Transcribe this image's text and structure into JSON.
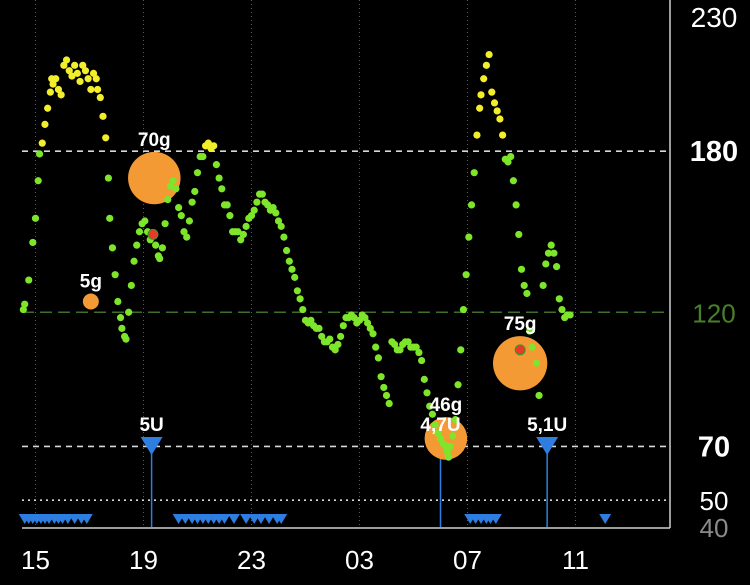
{
  "chart_data": {
    "type": "scatter",
    "title": "",
    "xlabel": "",
    "ylabel": "",
    "ylim": [
      40,
      230
    ],
    "x_range_hours": [
      14.5,
      14.1
    ],
    "target_line": 120,
    "y_ticks": [
      {
        "value": 230,
        "label": "230",
        "color": "#ffffff"
      },
      {
        "value": 180,
        "label": "180",
        "color": "#ffffff"
      },
      {
        "value": 120,
        "label": "120",
        "color": "#4a7f2a"
      },
      {
        "value": 70,
        "label": "70",
        "color": "#ffffff"
      },
      {
        "value": 50,
        "label": "50",
        "color": "#ffffff"
      },
      {
        "value": 40,
        "label": "40",
        "color": "#8a8a8a"
      }
    ],
    "x_ticks": [
      {
        "hour": 15,
        "label": "15"
      },
      {
        "hour": 19,
        "label": "19"
      },
      {
        "hour": 23,
        "label": "23"
      },
      {
        "hour": 3,
        "label": "03"
      },
      {
        "hour": 7,
        "label": "07"
      },
      {
        "hour": 11,
        "label": "11"
      }
    ],
    "colors": {
      "in_range": "#7ee62a",
      "high": "#f2ee2a",
      "low_marker": "#e83a2a",
      "carbs": "#f39a35",
      "insulin": "#2d7ee0",
      "grid": "#ffffff",
      "target_line": "#3f6e28"
    },
    "glucose": [
      [
        14.55,
        121
      ],
      [
        14.6,
        123
      ],
      [
        14.75,
        132
      ],
      [
        14.9,
        146
      ],
      [
        15.0,
        155
      ],
      [
        15.1,
        169
      ],
      [
        15.15,
        179
      ],
      [
        15.25,
        183
      ],
      [
        15.35,
        190
      ],
      [
        15.45,
        196
      ],
      [
        15.55,
        202
      ],
      [
        15.6,
        207
      ],
      [
        15.65,
        205
      ],
      [
        15.75,
        207
      ],
      [
        15.85,
        203
      ],
      [
        15.95,
        201
      ],
      [
        16.05,
        212
      ],
      [
        16.15,
        214
      ],
      [
        16.25,
        210
      ],
      [
        16.35,
        208
      ],
      [
        16.45,
        212
      ],
      [
        16.55,
        209
      ],
      [
        16.65,
        206
      ],
      [
        16.75,
        212
      ],
      [
        16.85,
        210
      ],
      [
        16.95,
        207
      ],
      [
        17.05,
        203
      ],
      [
        17.15,
        209
      ],
      [
        17.25,
        207
      ],
      [
        17.3,
        203
      ],
      [
        17.4,
        200
      ],
      [
        17.5,
        193
      ],
      [
        17.6,
        185
      ],
      [
        17.7,
        170
      ],
      [
        17.75,
        155
      ],
      [
        17.85,
        144
      ],
      [
        17.95,
        134
      ],
      [
        18.05,
        124
      ],
      [
        18.15,
        118
      ],
      [
        18.2,
        114
      ],
      [
        18.3,
        111
      ],
      [
        18.35,
        110
      ],
      [
        18.45,
        120
      ],
      [
        18.55,
        130
      ],
      [
        18.65,
        139
      ],
      [
        18.75,
        145
      ],
      [
        18.85,
        150
      ],
      [
        18.95,
        153
      ],
      [
        19.05,
        154
      ],
      [
        19.15,
        150
      ],
      [
        19.25,
        147
      ],
      [
        19.35,
        149
      ],
      [
        19.45,
        145
      ],
      [
        19.55,
        141
      ],
      [
        19.6,
        140
      ],
      [
        19.7,
        144
      ],
      [
        19.8,
        153
      ],
      [
        19.9,
        162
      ],
      [
        20.0,
        167
      ],
      [
        20.1,
        169
      ],
      [
        20.2,
        166
      ],
      [
        20.3,
        159
      ],
      [
        20.4,
        156
      ],
      [
        20.5,
        150
      ],
      [
        20.6,
        148
      ],
      [
        20.7,
        154
      ],
      [
        20.8,
        161
      ],
      [
        20.9,
        165
      ],
      [
        21.0,
        172
      ],
      [
        21.1,
        178
      ],
      [
        21.2,
        178
      ],
      [
        21.3,
        182
      ],
      [
        21.4,
        183
      ],
      [
        21.5,
        181
      ],
      [
        21.6,
        182
      ],
      [
        21.7,
        175
      ],
      [
        21.8,
        170
      ],
      [
        21.9,
        166
      ],
      [
        22.0,
        160
      ],
      [
        22.1,
        160
      ],
      [
        22.2,
        156
      ],
      [
        22.3,
        150
      ],
      [
        22.4,
        150
      ],
      [
        22.5,
        150
      ],
      [
        22.6,
        147
      ],
      [
        22.7,
        149
      ],
      [
        22.8,
        152
      ],
      [
        22.9,
        155
      ],
      [
        23.0,
        156
      ],
      [
        23.1,
        158
      ],
      [
        23.2,
        161
      ],
      [
        23.3,
        164
      ],
      [
        23.4,
        164
      ],
      [
        23.5,
        161
      ],
      [
        23.6,
        160
      ],
      [
        23.7,
        158
      ],
      [
        23.8,
        159
      ],
      [
        23.9,
        157
      ],
      [
        24.0,
        154
      ],
      [
        24.1,
        152
      ],
      [
        24.2,
        148
      ],
      [
        24.3,
        143
      ],
      [
        24.4,
        139
      ],
      [
        24.5,
        136
      ],
      [
        24.6,
        133
      ],
      [
        24.7,
        128
      ],
      [
        24.8,
        125
      ],
      [
        24.9,
        121
      ],
      [
        25.0,
        117
      ],
      [
        25.1,
        116
      ],
      [
        25.2,
        117
      ],
      [
        25.3,
        115
      ],
      [
        25.4,
        114
      ],
      [
        25.5,
        114
      ],
      [
        25.6,
        111
      ],
      [
        25.7,
        109
      ],
      [
        25.8,
        109
      ],
      [
        25.9,
        110
      ],
      [
        26.0,
        107
      ],
      [
        26.1,
        106
      ],
      [
        26.2,
        108
      ],
      [
        26.3,
        111
      ],
      [
        26.4,
        115
      ],
      [
        26.5,
        118
      ],
      [
        26.6,
        118
      ],
      [
        26.7,
        119
      ],
      [
        26.8,
        118
      ],
      [
        26.9,
        116
      ],
      [
        27.0,
        117
      ],
      [
        27.1,
        119
      ],
      [
        27.2,
        118
      ],
      [
        27.3,
        116
      ],
      [
        27.4,
        114
      ],
      [
        27.5,
        112
      ],
      [
        27.6,
        107
      ],
      [
        27.7,
        103
      ],
      [
        27.8,
        96
      ],
      [
        27.9,
        92
      ],
      [
        28.0,
        89
      ],
      [
        28.1,
        86
      ],
      [
        28.2,
        109
      ],
      [
        28.3,
        108
      ],
      [
        28.4,
        106
      ],
      [
        28.5,
        106
      ],
      [
        28.6,
        108
      ],
      [
        28.7,
        109
      ],
      [
        28.8,
        109
      ],
      [
        28.9,
        107
      ],
      [
        29.0,
        107
      ],
      [
        29.1,
        107
      ],
      [
        29.2,
        105
      ],
      [
        29.3,
        102
      ],
      [
        29.4,
        95
      ],
      [
        29.5,
        90
      ],
      [
        29.6,
        85
      ],
      [
        29.7,
        82
      ],
      [
        29.8,
        78
      ],
      [
        29.9,
        75
      ],
      [
        30.0,
        73
      ],
      [
        30.1,
        71
      ],
      [
        30.2,
        70
      ],
      [
        30.25,
        68
      ],
      [
        30.3,
        66
      ],
      [
        30.35,
        70
      ],
      [
        30.45,
        74
      ],
      [
        30.55,
        80
      ],
      [
        30.65,
        93
      ],
      [
        30.75,
        106
      ],
      [
        30.85,
        121
      ],
      [
        30.95,
        134
      ],
      [
        31.05,
        148
      ],
      [
        31.15,
        160
      ],
      [
        31.25,
        172
      ],
      [
        31.35,
        186
      ],
      [
        31.45,
        196
      ],
      [
        31.5,
        201
      ],
      [
        31.6,
        207
      ],
      [
        31.7,
        212
      ],
      [
        31.8,
        216
      ],
      [
        31.9,
        202
      ],
      [
        32.0,
        198
      ],
      [
        32.1,
        195
      ],
      [
        32.2,
        192
      ],
      [
        32.3,
        186
      ],
      [
        32.4,
        177
      ],
      [
        32.5,
        176
      ],
      [
        32.6,
        178
      ],
      [
        32.7,
        169
      ],
      [
        32.8,
        160
      ],
      [
        32.9,
        149
      ],
      [
        33.0,
        136
      ],
      [
        33.1,
        130
      ],
      [
        33.2,
        127
      ],
      [
        33.3,
        113
      ],
      [
        33.4,
        107
      ],
      [
        33.55,
        101
      ],
      [
        33.65,
        89
      ],
      [
        33.8,
        130
      ],
      [
        33.9,
        138
      ],
      [
        34.0,
        142
      ],
      [
        34.1,
        145
      ],
      [
        34.2,
        142
      ],
      [
        34.3,
        137
      ],
      [
        34.4,
        125
      ],
      [
        34.5,
        121
      ],
      [
        34.6,
        118
      ],
      [
        34.7,
        119
      ],
      [
        34.8,
        119
      ]
    ],
    "high_threshold": 180,
    "red_readings": [
      [
        19.35,
        149
      ],
      [
        32.95,
        106
      ]
    ],
    "carbs": [
      {
        "hour": 19.4,
        "value": 170,
        "grams": 70,
        "label": "70g"
      },
      {
        "hour": 17.05,
        "value": 124,
        "grams": 5,
        "label": "5g"
      },
      {
        "hour": 30.2,
        "value": 73,
        "grams": 46,
        "label": "46g"
      },
      {
        "hour": 32.95,
        "value": 101,
        "grams": 75,
        "label": "75g"
      }
    ],
    "boluses": [
      {
        "hour": 19.3,
        "units": 5,
        "label": "5U"
      },
      {
        "hour": 30.0,
        "units": 4.7,
        "label": "4,7U"
      },
      {
        "hour": 33.95,
        "units": 5.1,
        "label": "5,1U"
      }
    ],
    "basal_markers": [
      14.6,
      14.75,
      14.9,
      15.05,
      15.2,
      15.35,
      15.5,
      15.7,
      15.85,
      16.0,
      16.2,
      16.45,
      16.7,
      16.9,
      20.3,
      20.55,
      20.8,
      21.0,
      21.2,
      21.4,
      21.6,
      21.8,
      22.0,
      22.35,
      22.8,
      23.1,
      23.35,
      23.65,
      23.95,
      24.1,
      31.1,
      31.3,
      31.5,
      31.7,
      31.85,
      32.05,
      36.1
    ]
  }
}
